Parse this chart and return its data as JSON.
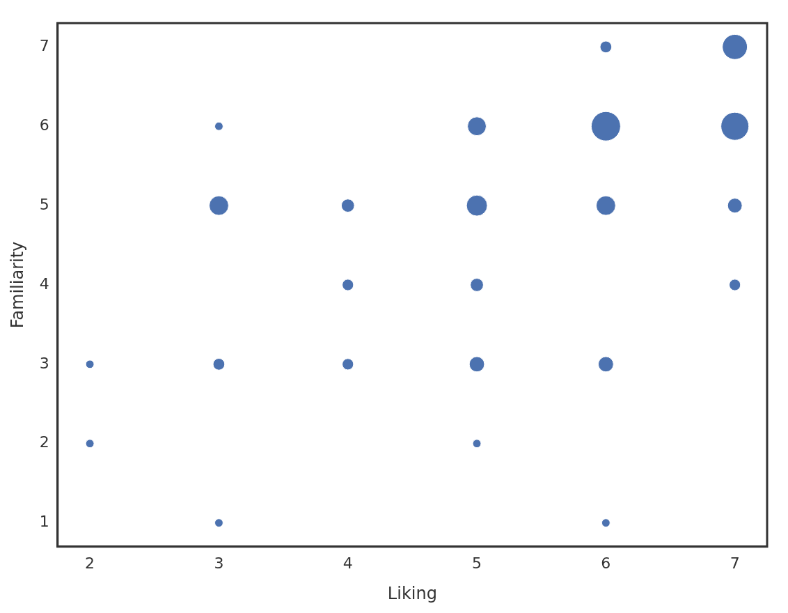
{
  "chart_data": {
    "type": "bubble",
    "xlabel": "Liking",
    "ylabel": "Familiarity",
    "color": "#4c72b0",
    "x": [
      2,
      2,
      3,
      3,
      3,
      3,
      4,
      4,
      4,
      5,
      5,
      5,
      5,
      5,
      6,
      6,
      6,
      6,
      6,
      7,
      7,
      7,
      7
    ],
    "values": [
      3,
      2,
      6,
      5,
      3,
      1,
      5,
      4,
      3,
      6,
      5,
      4,
      3,
      2,
      7,
      6,
      5,
      3,
      1,
      7,
      6,
      5,
      4
    ],
    "sizes": [
      0.08,
      0.08,
      0.08,
      0.44,
      0.16,
      0.08,
      0.2,
      0.15,
      0.15,
      0.41,
      0.51,
      0.2,
      0.27,
      0.08,
      0.16,
      1,
      0.44,
      0.27,
      0.08,
      0.73,
      0.91,
      0.25,
      0.15
    ],
    "xlim": [
      1.75,
      7.25
    ],
    "ylim": [
      0.7,
      7.3
    ],
    "xticks": [
      2,
      3,
      4,
      5,
      6,
      7
    ],
    "yticks": [
      1,
      2,
      3,
      4,
      5,
      6,
      7
    ],
    "grid": false,
    "legend": false
  }
}
